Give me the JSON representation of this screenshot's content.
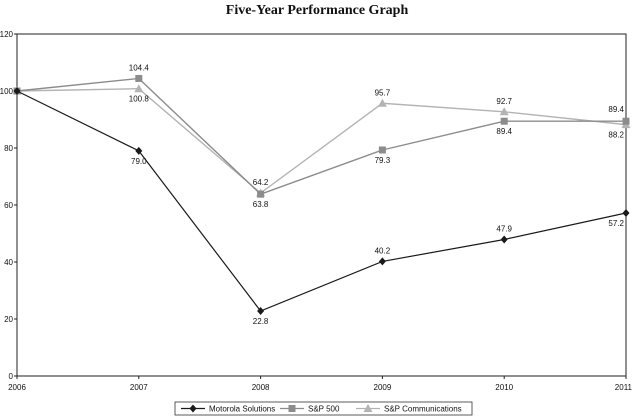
{
  "chart_data": {
    "type": "line",
    "title": "Five-Year Performance Graph",
    "xlabel": "",
    "ylabel": "",
    "x": [
      "2006",
      "2007",
      "2008",
      "2009",
      "2010",
      "2011"
    ],
    "ylim": [
      0,
      120
    ],
    "yticks": [
      0,
      20,
      40,
      60,
      80,
      100,
      120
    ],
    "grid": false,
    "legend_position": "bottom",
    "series": [
      {
        "name": "Motorola Solutions",
        "values": [
          100,
          79.0,
          22.8,
          40.2,
          47.9,
          57.2
        ],
        "labels": [
          "",
          "79.0",
          "22.8",
          "40.2",
          "47.9",
          "57.2"
        ],
        "color": "#1a1a1a",
        "marker": "diamond"
      },
      {
        "name": "S&P 500",
        "values": [
          100,
          104.4,
          63.8,
          79.3,
          89.4,
          89.4
        ],
        "labels": [
          "",
          "104.4",
          "63.8",
          "79.3",
          "89.4",
          "89.4"
        ],
        "color": "#8c8c8c",
        "marker": "square"
      },
      {
        "name": "S&P Communications",
        "values": [
          100,
          100.8,
          64.2,
          95.7,
          92.7,
          88.2
        ],
        "labels": [
          "",
          "100.8",
          "64.2",
          "95.7",
          "92.7",
          "88.2"
        ],
        "color": "#b3b3b3",
        "marker": "triangle"
      }
    ]
  }
}
